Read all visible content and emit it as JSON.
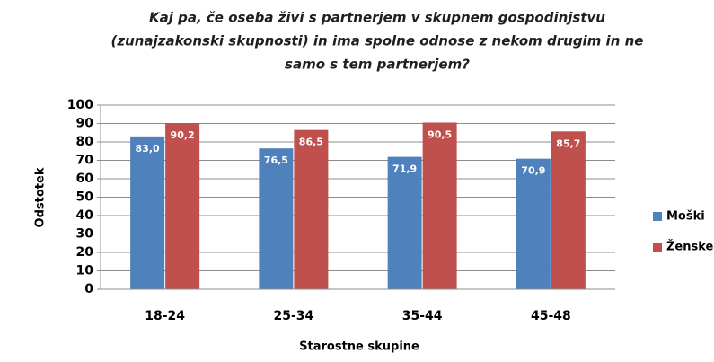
{
  "chart_data": {
    "type": "bar",
    "title": [
      "Kaj pa, če oseba živi s partnerjem v skupnem gospodinjstvu",
      "(zunajzakonski skupnosti) in ima spolne odnose z nekom drugim in ne",
      "samo s tem partnerjem?"
    ],
    "x_label": "Starostne skupine",
    "y_label": "Odstotek",
    "categories": [
      "18-24",
      "25-34",
      "35-44",
      "45-48"
    ],
    "series": [
      {
        "name": "Moški",
        "color": "#4f81bd",
        "values": [
          83.0,
          76.5,
          71.9,
          70.9
        ],
        "value_labels": [
          "83,0",
          "76,5",
          "71,9",
          "70,9"
        ]
      },
      {
        "name": "Ženske",
        "color": "#c0504d",
        "values": [
          90.2,
          86.5,
          90.5,
          85.7
        ],
        "value_labels": [
          "90,2",
          "86,5",
          "90,5",
          "85,7"
        ]
      }
    ],
    "ylim": [
      0,
      100
    ],
    "yticks": [
      0,
      10,
      20,
      30,
      40,
      50,
      60,
      70,
      80,
      90,
      100
    ],
    "grid": true,
    "legend": "right"
  }
}
